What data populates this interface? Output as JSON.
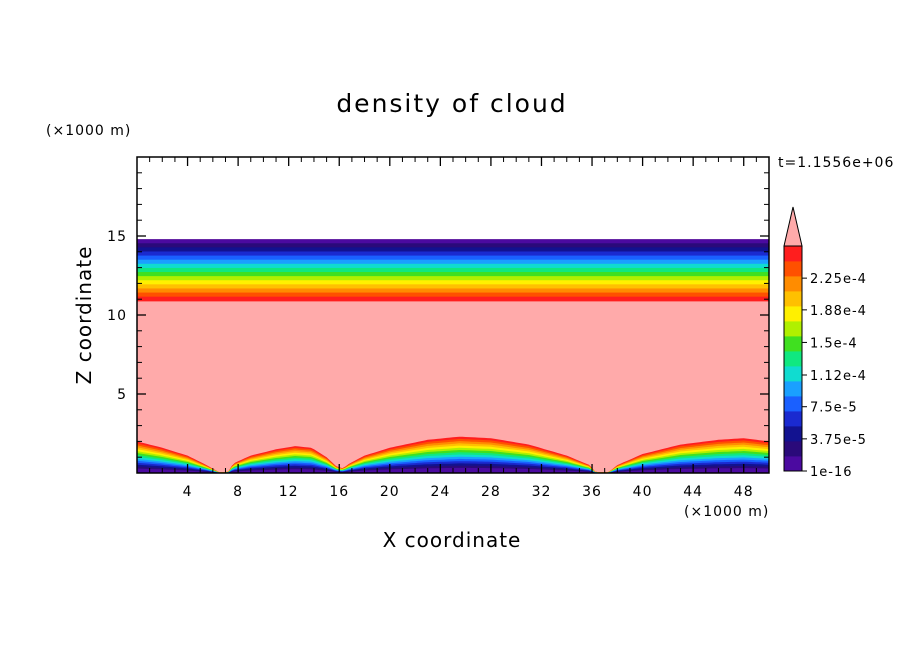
{
  "chart_data": {
    "type": "heatmap",
    "title": "density of cloud",
    "xlabel": "X coordinate",
    "ylabel": "Z coordinate",
    "x_unit": "(×1000 m)",
    "y_unit": "(×1000 m)",
    "time_label": "t=1.1556e+06",
    "xlim": [
      0,
      50
    ],
    "ylim": [
      0,
      20
    ],
    "x_ticks": [
      {
        "value": 4,
        "label": "4"
      },
      {
        "value": 8,
        "label": "8"
      },
      {
        "value": 12,
        "label": "12"
      },
      {
        "value": 16,
        "label": "16"
      },
      {
        "value": 20,
        "label": "20"
      },
      {
        "value": 24,
        "label": "24"
      },
      {
        "value": 28,
        "label": "28"
      },
      {
        "value": 32,
        "label": "32"
      },
      {
        "value": 36,
        "label": "36"
      },
      {
        "value": 40,
        "label": "40"
      },
      {
        "value": 44,
        "label": "44"
      },
      {
        "value": 48,
        "label": "48"
      }
    ],
    "y_ticks": [
      {
        "value": 5,
        "label": "5"
      },
      {
        "value": 10,
        "label": "10"
      },
      {
        "value": 15,
        "label": "15"
      }
    ],
    "colorbar": {
      "min": 1e-16,
      "max": 0.0002625,
      "over_color": "#ffaaaa",
      "levels": [
        "#4b0aa0",
        "#2a0a7a",
        "#121290",
        "#1a2ad0",
        "#1a60ff",
        "#1aa0ff",
        "#10dcd0",
        "#10e880",
        "#40e020",
        "#b0f000",
        "#fff000",
        "#ffc000",
        "#ff8c00",
        "#ff5000",
        "#ff1e1e"
      ],
      "labels": [
        {
          "value": 1e-16,
          "label": "1e-16"
        },
        {
          "value": 3.75e-05,
          "label": "3.75e-5"
        },
        {
          "value": 7.5e-05,
          "label": "7.5e-5"
        },
        {
          "value": 0.000112,
          "label": "1.12e-4"
        },
        {
          "value": 0.00015,
          "label": "1.5e-4"
        },
        {
          "value": 0.000188,
          "label": "1.88e-4"
        },
        {
          "value": 0.000225,
          "label": "2.25e-4"
        }
      ]
    },
    "cloud_top": {
      "z_top": 14.8,
      "z_saturated": 10.9
    },
    "cloud_base": [
      {
        "x": 0,
        "z": 2.0
      },
      {
        "x": 2,
        "z": 1.6
      },
      {
        "x": 4,
        "z": 1.1
      },
      {
        "x": 5.5,
        "z": 0.5
      },
      {
        "x": 6.5,
        "z": 0.05
      },
      {
        "x": 7.2,
        "z": 0.05
      },
      {
        "x": 7.6,
        "z": 0.6
      },
      {
        "x": 9,
        "z": 1.1
      },
      {
        "x": 11,
        "z": 1.5
      },
      {
        "x": 12.5,
        "z": 1.7
      },
      {
        "x": 13.8,
        "z": 1.6
      },
      {
        "x": 15,
        "z": 1.0
      },
      {
        "x": 15.8,
        "z": 0.4
      },
      {
        "x": 16.3,
        "z": 0.3
      },
      {
        "x": 16.8,
        "z": 0.6
      },
      {
        "x": 18,
        "z": 1.1
      },
      {
        "x": 20,
        "z": 1.6
      },
      {
        "x": 23,
        "z": 2.1
      },
      {
        "x": 25.5,
        "z": 2.3
      },
      {
        "x": 28,
        "z": 2.2
      },
      {
        "x": 31,
        "z": 1.8
      },
      {
        "x": 34,
        "z": 1.1
      },
      {
        "x": 35.8,
        "z": 0.5
      },
      {
        "x": 36.3,
        "z": 0.05
      },
      {
        "x": 37.3,
        "z": 0.05
      },
      {
        "x": 38,
        "z": 0.5
      },
      {
        "x": 40,
        "z": 1.2
      },
      {
        "x": 43,
        "z": 1.8
      },
      {
        "x": 46,
        "z": 2.1
      },
      {
        "x": 48,
        "z": 2.2
      },
      {
        "x": 50,
        "z": 2.0
      }
    ],
    "grid": false
  }
}
